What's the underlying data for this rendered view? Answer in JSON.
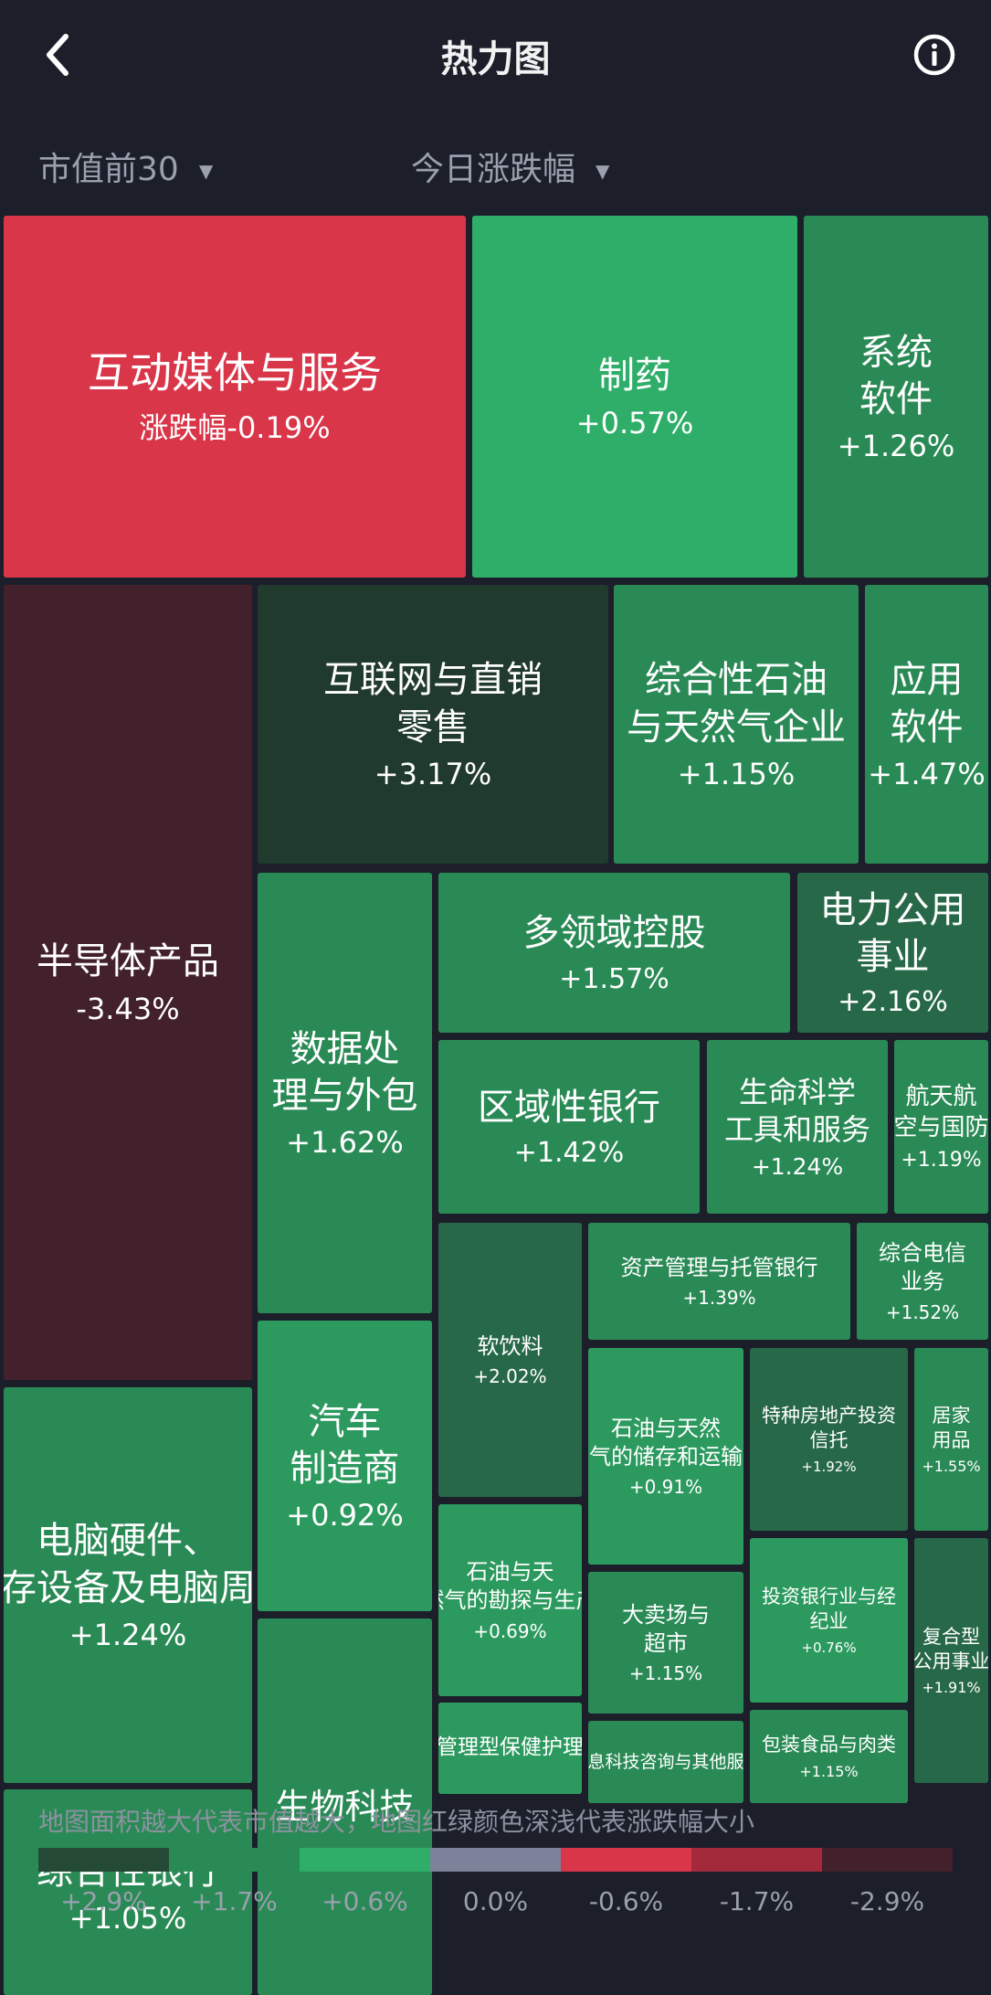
{
  "header": {
    "title": "热力图",
    "back_icon": "chevron-left-icon",
    "info_icon": "info-circle-icon"
  },
  "filters": [
    {
      "label": "市值前30",
      "icon": "caret-down-icon"
    },
    {
      "label": "今日涨跌幅",
      "icon": "caret-down-icon"
    }
  ],
  "treemap": {
    "tiles": [
      {
        "name": "互动媒体与服务",
        "change": "涨跌幅-0.19%",
        "color": "#d9364a"
      },
      {
        "name": "制药",
        "change": "+0.57%",
        "color": "#2fae69"
      },
      {
        "name": "系统\n软件",
        "change": "+1.26%",
        "color": "#2a8a56"
      },
      {
        "name": "半导体产品",
        "change": "-3.43%",
        "color": "#43212c"
      },
      {
        "name": "互联网与直销\n零售",
        "change": "+3.17%",
        "color": "#213a2e"
      },
      {
        "name": "综合性石油\n与天然气企业",
        "change": "+1.15%",
        "color": "#2a8a56"
      },
      {
        "name": "应用\n软件",
        "change": "+1.47%",
        "color": "#2a8a56"
      },
      {
        "name": "多领域控股",
        "change": "+1.57%",
        "color": "#2a8a56"
      },
      {
        "name": "电力公用\n事业",
        "change": "+2.16%",
        "color": "#276848"
      },
      {
        "name": "数据处\n理与外包",
        "change": "+1.62%",
        "color": "#2a8a56"
      },
      {
        "name": "区域性银行",
        "change": "+1.42%",
        "color": "#2a8a56"
      },
      {
        "name": "生命科学\n工具和服务",
        "change": "+1.24%",
        "color": "#2a8a56"
      },
      {
        "name": "航天航\n空与国防",
        "change": "+1.19%",
        "color": "#2a8a56"
      },
      {
        "name": "电脑硬件、\n储存设备及电脑周边",
        "change": "+1.24%",
        "color": "#2a8a56"
      },
      {
        "name": "资产管理与托管银行",
        "change": "+1.39%",
        "color": "#2a8a56"
      },
      {
        "name": "综合电信\n业务",
        "change": "+1.52%",
        "color": "#2a8a56"
      },
      {
        "name": "软饮料",
        "change": "+2.02%",
        "color": "#276848"
      },
      {
        "name": "汽车\n制造商",
        "change": "+0.92%",
        "color": "#2c9a5f"
      },
      {
        "name": "石油与天然\n气的储存和运输",
        "change": "+0.91%",
        "color": "#2c9a5f"
      },
      {
        "name": "特种房地产投资\n信托",
        "change": "+1.92%",
        "color": "#276848"
      },
      {
        "name": "居家\n用品",
        "change": "+1.55%",
        "color": "#2a8a56"
      },
      {
        "name": "石油与天\n然气的勘探与生产",
        "change": "+0.69%",
        "color": "#2c9a5f"
      },
      {
        "name": "大卖场与\n超市",
        "change": "+1.15%",
        "color": "#2a8a56"
      },
      {
        "name": "投资银行业与经\n纪业",
        "change": "+0.76%",
        "color": "#2c9a5f"
      },
      {
        "name": "复合型\n公用事业",
        "change": "+1.91%",
        "color": "#276848"
      },
      {
        "name": "综合性银行",
        "change": "+1.05%",
        "color": "#2a8a56"
      },
      {
        "name": "生物科技",
        "change": "",
        "color": "#2a8a56"
      },
      {
        "name": "管理型保健护理",
        "change": "",
        "color": "#2c9a5f"
      },
      {
        "name": "信息科技咨询与其他服务",
        "change": "",
        "color": "#2a8a56"
      },
      {
        "name": "包装食品与肉类",
        "change": "+1.15%",
        "color": "#2a8a56"
      }
    ]
  },
  "legend": {
    "description": "地图面积越大代表市值越大，地图红绿颜色深浅代表涨跌幅大小",
    "scale": [
      {
        "label": "+2.9%",
        "color": "#244a35"
      },
      {
        "label": "+1.7%",
        "color": "#2a8a56"
      },
      {
        "label": "+0.6%",
        "color": "#2fae69"
      },
      {
        "label": "0.0%",
        "color": "#7c829a"
      },
      {
        "label": "-0.6%",
        "color": "#d9364a"
      },
      {
        "label": "-1.7%",
        "color": "#a32a3a"
      },
      {
        "label": "-2.9%",
        "color": "#43212c"
      }
    ]
  }
}
